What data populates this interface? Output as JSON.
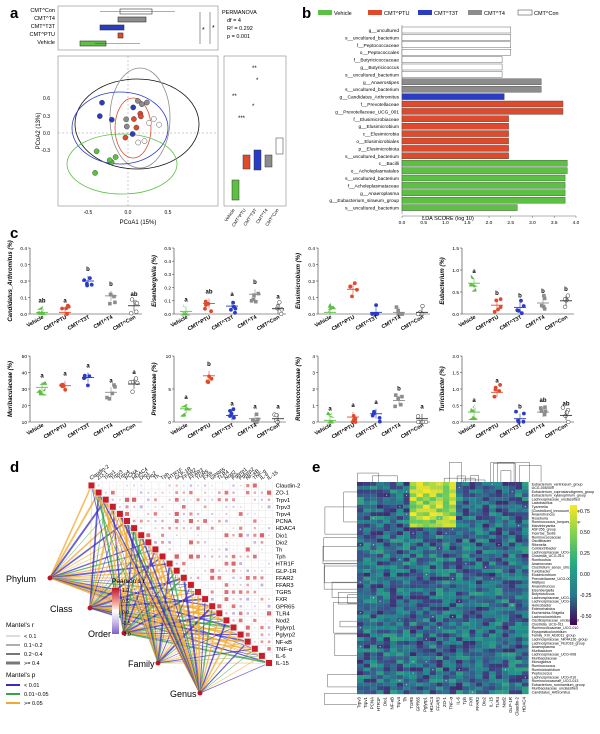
{
  "panels": {
    "a": "a",
    "b": "b",
    "c": "c",
    "d": "d",
    "e": "e"
  },
  "colors": {
    "vehicle": "#5cc043",
    "ptu": "#e04a2c",
    "t3t": "#2a3bc4",
    "t4": "#8c8c8c",
    "con": "#ffffff"
  },
  "a": {
    "groups": [
      "CMT^Con",
      "CMT^T4",
      "CMT^T3T",
      "CMT^PTU",
      "Vehicle"
    ],
    "permanova": {
      "title": "PERMANOVA",
      "df": "df = 4",
      "r2": "R² = 0.292",
      "p": "p = 0.001"
    },
    "xlabel": "PCoA1 (15%)",
    "ylabel": "PCoA2 (13%)",
    "xticks": [
      "-0.5",
      "0.0",
      "0.5"
    ],
    "yticks": [
      "0.6",
      "0.3",
      "0.0",
      "-0.3"
    ],
    "stars": [
      "*",
      "*",
      "**",
      "*",
      "**",
      "*",
      "***"
    ],
    "box_labels": [
      "Vehicle",
      "CMT^PTU",
      "CMT^T3T",
      "CMT^T4",
      "CMT^Con"
    ]
  },
  "b": {
    "legend": [
      "Vehicle",
      "CMT^PTU",
      "CMT^T3T",
      "CMT^T4",
      "CMT^Con"
    ],
    "xlabel": "LDA SCORE (log 10)",
    "chart_data": {
      "type": "bar",
      "orientation": "horizontal",
      "title": "",
      "xlabel": "LDA SCORE (log 10)",
      "xlim": [
        0,
        4.0
      ],
      "xticks": [
        "0.0",
        "0.5",
        "1.0",
        "1.5",
        "2.0",
        "2.5",
        "3.0",
        "3.5",
        "4.0"
      ],
      "categories": [
        "g__uncultured",
        "s__uncultured_bacterium",
        "f__Peptococcaceae",
        "o__Peptococcales",
        "f__Butyricicoccaceae",
        "g__Butyricicoccus",
        "s__uncultured_bacterium",
        "g__Anaerostipes",
        "s__uncultured_bacterium",
        "g__Candidatus_Arthromitus",
        "f__Prevotellaceae",
        "g__Prevotellaceae_UCG_001",
        "f__Elusimicrobiaceae",
        "g__Elusimicrobium",
        "c__Elusimicrobia",
        "o__Elusimicrobiales",
        "p__Elusimicrobiota",
        "s__uncultured_bacterium",
        "c__Bacilli",
        "o__Acholeplasmatales",
        "s__uncultured_bacterium",
        "f__Acholeplasmataceae",
        "g__Anaeroplasma",
        "g__Eubacterium_siraeum_group",
        "s__uncultured_bacterium"
      ],
      "values": [
        2.5,
        2.5,
        2.5,
        2.5,
        2.3,
        2.3,
        2.3,
        3.2,
        3.2,
        2.35,
        3.7,
        3.7,
        2.45,
        2.45,
        2.45,
        2.45,
        2.45,
        2.45,
        3.8,
        3.8,
        3.75,
        3.75,
        3.75,
        3.75,
        2.65
      ],
      "groups": [
        "Con",
        "Con",
        "Con",
        "Con",
        "Con",
        "Con",
        "Con",
        "T4",
        "T4",
        "T3T",
        "PTU",
        "PTU",
        "PTU",
        "PTU",
        "PTU",
        "PTU",
        "PTU",
        "PTU",
        "Vehicle",
        "Vehicle",
        "Vehicle",
        "Vehicle",
        "Vehicle",
        "Vehicle",
        "Vehicle"
      ]
    }
  },
  "c": {
    "xlabels": [
      "Vehicle",
      "CMT^PTU",
      "CMT^T3T",
      "CMT^T4",
      "CMT^Con"
    ],
    "chart_data": [
      {
        "type": "scatter",
        "ylabel": "Candidatus_Arthromitus (%)",
        "yticks": [
          "0.0",
          "0.1",
          "0.2",
          "0.3",
          "0.4"
        ],
        "means": [
          0.01,
          0.01,
          0.2,
          0.11,
          0.05
        ],
        "letters": [
          "ab",
          "a",
          "b",
          "b",
          "ab"
        ]
      },
      {
        "type": "scatter",
        "ylabel": "Eisenbergiella (%)",
        "yticks": [
          "0.0",
          "0.1",
          "0.2",
          "0.3",
          "0.4",
          "0.5"
        ],
        "means": [
          0.02,
          0.08,
          0.06,
          0.15,
          0.04
        ],
        "letters": [
          "a",
          "ab",
          "a",
          "b",
          "a"
        ]
      },
      {
        "type": "scatter",
        "ylabel": "Elusimicrobium (%)",
        "yticks": [
          "0.0",
          "0.1",
          "0.2",
          "0.3",
          "0.4"
        ],
        "means": [
          0.01,
          0.15,
          0.01,
          0.01,
          0.01
        ],
        "letters": [
          "",
          "",
          "",
          "",
          ""
        ]
      },
      {
        "type": "scatter",
        "ylabel": "Eubacterium (%)",
        "yticks": [
          "0.0",
          "0.5",
          "1.0",
          "1.5"
        ],
        "means": [
          0.7,
          0.2,
          0.15,
          0.25,
          0.3
        ],
        "letters": [
          "a",
          "b",
          "b",
          "b",
          "b"
        ]
      },
      {
        "type": "scatter",
        "ylabel": "Muribaculaceae (%)",
        "yticks": [
          "10",
          "20",
          "30",
          "40",
          "50"
        ],
        "means": [
          31,
          32,
          37,
          28,
          33
        ],
        "letters": [
          "a",
          "a",
          "a",
          "a",
          "a"
        ]
      },
      {
        "type": "scatter",
        "ylabel": "Prevotellaceae (%)",
        "yticks": [
          "0",
          "5",
          "10"
        ],
        "means": [
          2,
          7,
          1,
          0.5,
          0.5
        ],
        "letters": [
          "a",
          "b",
          "a",
          "a",
          "a"
        ]
      },
      {
        "type": "scatter",
        "ylabel": "Ruminococcaceae (%)",
        "yticks": [
          "0",
          "1",
          "2",
          "3",
          "4"
        ],
        "means": [
          0.1,
          0.3,
          0.5,
          1.3,
          0.2
        ],
        "letters": [
          "a",
          "a",
          "a",
          "b",
          "a"
        ]
      },
      {
        "type": "scatter",
        "ylabel": "Turicibacter (%)",
        "yticks": [
          "0.0",
          "0.5",
          "1.0",
          "1.5",
          "2.0"
        ],
        "means": [
          0.3,
          0.9,
          0.1,
          0.3,
          0.2
        ],
        "letters": [
          "a",
          "a",
          "b",
          "ab",
          "ab"
        ]
      }
    ]
  },
  "d": {
    "genes": [
      "Claudin-2",
      "ZO-1",
      "Trpv1",
      "Trpv3",
      "Trpv4",
      "PCNA",
      "HDAC4",
      "Dio1",
      "Dio2",
      "Th",
      "Tph",
      "HTR1F",
      "GLP-1R",
      "FFAR2",
      "FFAR3",
      "TGR5",
      "FXR",
      "GPR65",
      "TLR4",
      "Nod2",
      "Pglyrp1",
      "Pglyrp2",
      "NF-κB",
      "TNF-α",
      "IL-6",
      "IL-15"
    ],
    "taxa": [
      "Phylum",
      "Class",
      "Order",
      "Family",
      "Genus"
    ],
    "pearson_title": "Pearson's r",
    "pearson_ticks": [
      "1.0",
      "0.5",
      "0.0",
      "-0.5",
      "-1.0"
    ],
    "mantel_r_title": "Mantel's r",
    "mantel_r": [
      "< 0.1",
      "0.1~0.2",
      "0.2~0.4",
      ">= 0.4"
    ],
    "mantel_p_title": "Mantel's p",
    "mantel_p": [
      "< 0.01",
      "0.01~0.05",
      ">= 0.05"
    ]
  },
  "e": {
    "rows": [
      "Eubacterium_ventriosum_group",
      "UCG-005/009",
      "Eubacterium_coprostanoligenes_group",
      "Eubacterium_xylanophilum_group",
      "Lachnospiraceae_unclassified",
      "Lactobacillus",
      "Tyzzerella",
      "[Clostridium]_innocuum_group",
      "Anaerotruncus",
      "Roseburia",
      "Ruminococcus_torques_group",
      "Marvinbryantia",
      "ASF356_group",
      "Incertae_Sedis",
      "Ruminococcaceae",
      "Oscillibacter",
      "Rikenella",
      "Colidextribacter",
      "Lachnospiraceae_UCG-006",
      "Clostridia_UCG-014",
      "Romboutsia",
      "Anaerovorax",
      "Clostridium_sensu_stricto_1",
      "Turicibacter",
      "Elusimicrobium",
      "Prevotellaceae_UCG-001",
      "Alistipes",
      "Anaerotruncus",
      "Eisenbergiella",
      "Butyricicoccus",
      "Lachnospiraceae_UCG-001",
      "Lachnospiraceae_UCG-002",
      "Helicobacter",
      "Enterorhabdus",
      "Escherichia-Shigella",
      "Lachnoclostridium",
      "Oscillospiraceae_unclassified",
      "Clostridia_UCG-011",
      "Ruminococcaceae_UCG-010",
      "Erysipelatoclostridium",
      "Family_XIII_AD3011_group",
      "Lachnospiraceae_NK4A136_group",
      "Lachnospiraceae_FE2018_group",
      "Anaeroplasma",
      "Muribaculum",
      "Lachnospiraceae_UCG-008",
      "Muribaculaceae",
      "Monoglobus",
      "Ruminococcus",
      "Ruminiclostridium",
      "Peptococcus",
      "Lachnospiraceae_UCG-010",
      "Ruminococcaceae_UCG-013",
      "Eubacterium_ruminantium_group",
      "Muribaculaceae_unclassified",
      "Candidatus_Arthromitus"
    ],
    "cols": [
      "Trpv3",
      "Trpv1",
      "PCNA",
      "HTR1F",
      "Dio1",
      "NF-κB",
      "Trpv4",
      "Th",
      "TGR5",
      "GPR65",
      "Pglyrp1",
      "HDAC4",
      "FFAR3",
      "ZO-1",
      "TNF-α",
      "IL-6",
      "Tph",
      "FXR",
      "FFAR2",
      "Dio2",
      "IL-15",
      "TLR4",
      "Nod2",
      "GLP-1R",
      "Claudin-2",
      "HDAC4"
    ],
    "legend_ticks": [
      "0.75",
      "0.50",
      "0.25",
      "0.00",
      "-0.25",
      "-0.50"
    ],
    "sig_mark": "*"
  }
}
